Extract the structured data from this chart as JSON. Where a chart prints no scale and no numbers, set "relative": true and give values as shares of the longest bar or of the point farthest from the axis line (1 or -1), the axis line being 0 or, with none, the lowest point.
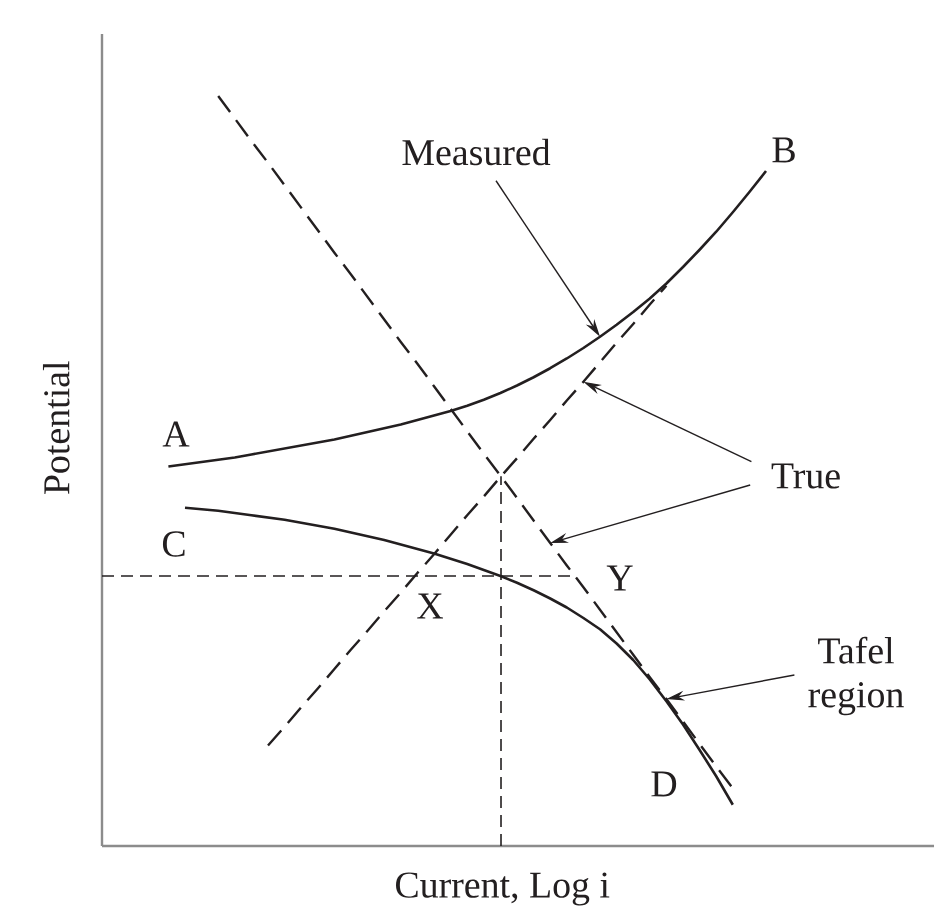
{
  "chart_data": {
    "type": "line",
    "relative": true,
    "xlabel": "Current, Log i",
    "ylabel": "Potential",
    "categories": [
      null,
      null,
      null,
      null,
      null,
      null,
      null,
      null,
      null,
      null,
      null,
      null,
      null,
      null,
      null,
      null,
      null,
      null,
      null,
      null,
      null,
      null,
      null,
      null,
      null,
      null,
      null,
      null,
      null,
      null,
      null,
      null,
      null,
      null,
      null,
      null,
      null,
      null,
      null,
      null,
      null
    ],
    "series": [
      {
        "color": "#231f20",
        "line_style": "solid",
        "values": [
          null,
          null,
          null,
          null,
          0.506,
          0.509,
          0.512,
          0.515,
          0.518,
          0.522,
          0.526,
          0.53,
          0.534,
          0.538,
          0.542,
          0.547,
          0.552,
          0.557,
          0.562,
          0.568,
          0.574,
          0.58,
          0.587,
          0.595,
          0.604,
          0.614,
          0.625,
          0.637,
          0.65,
          0.664,
          0.679,
          0.695,
          0.712,
          0.73,
          0.75,
          0.772,
          0.795,
          0.819,
          0.845,
          0.872,
          0.9
        ]
      },
      {
        "color": "#231f20",
        "line_style": "solid",
        "values": [
          null,
          null,
          null,
          null,
          null,
          0.451,
          0.449,
          0.447,
          0.444,
          0.441,
          0.438,
          0.435,
          0.431,
          0.427,
          0.423,
          0.418,
          0.413,
          0.408,
          0.402,
          0.396,
          0.39,
          0.383,
          0.376,
          0.368,
          0.36,
          0.351,
          0.341,
          0.33,
          0.318,
          0.304,
          0.289,
          0.27,
          0.248,
          0.222,
          0.193,
          0.162,
          0.128,
          0.093,
          0.055,
          null,
          null
        ]
      },
      {
        "color": "#231f20",
        "line_style": "dashed",
        "values": [
          null,
          null,
          null,
          null,
          null,
          null,
          null,
          null,
          null,
          null,
          0.134,
          0.159,
          0.185,
          0.21,
          0.236,
          0.262,
          0.287,
          0.313,
          0.338,
          0.364,
          0.389,
          0.415,
          0.441,
          0.466,
          0.492,
          0.517,
          0.543,
          0.568,
          0.594,
          0.619,
          0.645,
          0.671,
          0.696,
          0.722,
          0.747,
          null,
          null,
          null,
          null,
          null,
          null
        ]
      },
      {
        "color": "#231f20",
        "line_style": "dashed",
        "values": [
          null,
          null,
          null,
          null,
          null,
          null,
          null,
          1.0,
          0.97,
          0.94,
          0.911,
          0.881,
          0.851,
          0.821,
          0.791,
          0.762,
          0.732,
          0.702,
          0.672,
          0.643,
          0.613,
          0.583,
          0.553,
          0.523,
          0.494,
          0.464,
          0.434,
          0.404,
          0.374,
          0.345,
          0.315,
          0.285,
          0.255,
          0.225,
          0.196,
          0.166,
          0.136,
          0.106,
          0.077,
          null,
          null
        ]
      }
    ],
    "ref_lines": [
      {
        "axis": "y",
        "value": 0.36,
        "color": "#231f20",
        "line_style": "dashed"
      }
    ],
    "annotations": [
      "Measured",
      "True",
      "Tafel region",
      "A",
      "B",
      "C",
      "D",
      "X",
      "Y"
    ]
  }
}
